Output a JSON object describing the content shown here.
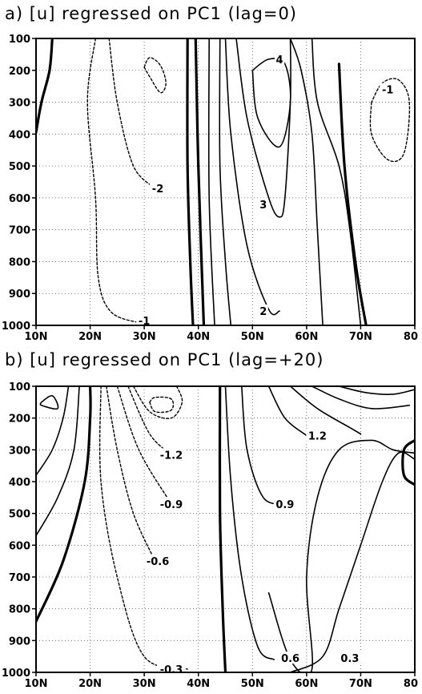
{
  "chart_data": [
    {
      "type": "contour",
      "title": "a) [u] regressed on PC1 (lag=0)",
      "x_ticks": [
        "10N",
        "20N",
        "30N",
        "40N",
        "50N",
        "60N",
        "70N",
        "80"
      ],
      "x_values": [
        10,
        20,
        30,
        40,
        50,
        60,
        70,
        80
      ],
      "y_ticks": [
        "100",
        "200",
        "300",
        "400",
        "500",
        "600",
        "700",
        "800",
        "900",
        "1000"
      ],
      "y_values": [
        100,
        200,
        300,
        400,
        500,
        600,
        700,
        800,
        900,
        1000
      ],
      "xlim": [
        10,
        80
      ],
      "ylim": [
        100,
        1000
      ],
      "y_inverted": true,
      "grid": true,
      "contour_labels": [
        {
          "text": "4",
          "lat": 55,
          "p": 165
        },
        {
          "text": "-1",
          "lat": 75,
          "p": 260
        },
        {
          "text": "-2",
          "lat": 32.5,
          "p": 570
        },
        {
          "text": "3",
          "lat": 52,
          "p": 620
        },
        {
          "text": "2",
          "lat": 52,
          "p": 955
        },
        {
          "text": "-1",
          "lat": 30,
          "p": 985
        }
      ],
      "contours": [
        {
          "style": "zero",
          "points": [
            [
              10,
              395
            ],
            [
              11,
              300
            ],
            [
              12.5,
              200
            ],
            [
              13,
              100
            ]
          ]
        },
        {
          "style": "dashed",
          "points": [
            [
              21,
              100
            ],
            [
              19.5,
              300
            ],
            [
              21,
              600
            ],
            [
              21.5,
              850
            ],
            [
              24,
              960
            ],
            [
              30,
              995
            ]
          ]
        },
        {
          "style": "dashed",
          "points": [
            [
              23.5,
              100
            ],
            [
              25,
              300
            ],
            [
              28,
              500
            ],
            [
              32,
              570
            ]
          ]
        },
        {
          "style": "dashed",
          "points": [
            [
              30,
              190
            ],
            [
              31,
              220
            ],
            [
              33,
              270
            ],
            [
              34,
              240
            ],
            [
              33,
              185
            ],
            [
              31,
              160
            ],
            [
              30,
              190
            ]
          ]
        },
        {
          "style": "zero",
          "points": [
            [
              38,
              100
            ],
            [
              38,
              500
            ],
            [
              38.5,
              800
            ],
            [
              39,
              1000
            ]
          ]
        },
        {
          "style": "zero",
          "points": [
            [
              39.5,
              100
            ],
            [
              40,
              500
            ],
            [
              41,
              1000
            ]
          ]
        },
        {
          "style": "solid",
          "points": [
            [
              42,
              100
            ],
            [
              42,
              600
            ],
            [
              43,
              1000
            ]
          ]
        },
        {
          "style": "solid",
          "points": [
            [
              44,
              100
            ],
            [
              44,
              500
            ],
            [
              45,
              800
            ],
            [
              46,
              1000
            ]
          ]
        },
        {
          "style": "solid",
          "points": [
            [
              45,
              100
            ],
            [
              46,
              400
            ],
            [
              49,
              750
            ],
            [
              53,
              950
            ],
            [
              55,
              955
            ]
          ]
        },
        {
          "style": "solid",
          "points": [
            [
              47,
              100
            ],
            [
              49,
              350
            ],
            [
              53,
              600
            ],
            [
              55,
              660
            ],
            [
              56,
              600
            ],
            [
              57,
              300
            ],
            [
              57,
              100
            ]
          ]
        },
        {
          "style": "solid",
          "points": [
            [
              50,
              200
            ],
            [
              51,
              350
            ],
            [
              55,
              440
            ],
            [
              57,
              300
            ],
            [
              56,
              180
            ],
            [
              53,
              165
            ],
            [
              50,
              200
            ]
          ]
        },
        {
          "style": "solid",
          "points": [
            [
              57,
              100
            ],
            [
              59,
              200
            ],
            [
              61,
              400
            ],
            [
              62,
              700
            ],
            [
              63,
              1000
            ]
          ]
        },
        {
          "style": "solid",
          "points": [
            [
              61,
              100
            ],
            [
              62,
              300
            ],
            [
              66,
              500
            ],
            [
              68,
              700
            ],
            [
              70,
              1000
            ]
          ]
        },
        {
          "style": "zero",
          "points": [
            [
              66,
              180
            ],
            [
              67,
              500
            ],
            [
              69,
              800
            ],
            [
              71,
              1000
            ]
          ]
        },
        {
          "style": "dashed",
          "points": [
            [
              72,
              300
            ],
            [
              72,
              400
            ],
            [
              75,
              480
            ],
            [
              78,
              460
            ],
            [
              79,
              300
            ],
            [
              77,
              230
            ],
            [
              74,
              240
            ],
            [
              72,
              300
            ]
          ]
        }
      ]
    },
    {
      "type": "contour",
      "title": "b) [u] regressed on PC1 (lag=+20)",
      "x_ticks": [
        "10N",
        "20N",
        "30N",
        "40N",
        "50N",
        "60N",
        "70N",
        "80"
      ],
      "x_values": [
        10,
        20,
        30,
        40,
        50,
        60,
        70,
        80
      ],
      "y_ticks": [
        "100",
        "200",
        "300",
        "400",
        "500",
        "600",
        "700",
        "800",
        "900",
        "1000"
      ],
      "y_values": [
        100,
        200,
        300,
        400,
        500,
        600,
        700,
        800,
        900,
        1000
      ],
      "xlim": [
        10,
        80
      ],
      "ylim": [
        100,
        1000
      ],
      "y_inverted": true,
      "grid": true,
      "contour_labels": [
        {
          "text": "-1.2",
          "lat": 35,
          "p": 315
        },
        {
          "text": "-0.9",
          "lat": 35,
          "p": 470
        },
        {
          "text": "-0.6",
          "lat": 32.5,
          "p": 650
        },
        {
          "text": "-0.3",
          "lat": 35,
          "p": 990
        },
        {
          "text": "1.2",
          "lat": 62,
          "p": 255
        },
        {
          "text": "0.9",
          "lat": 56,
          "p": 470
        },
        {
          "text": "0.6",
          "lat": 57,
          "p": 955
        },
        {
          "text": "0.3",
          "lat": 68,
          "p": 955
        }
      ],
      "contours": [
        {
          "style": "solid",
          "points": [
            [
              11,
              150
            ],
            [
              13,
              130
            ],
            [
              14,
              170
            ],
            [
              11,
              160
            ],
            [
              11,
              150
            ]
          ]
        },
        {
          "style": "solid",
          "points": [
            [
              10,
              380
            ],
            [
              13,
              300
            ],
            [
              15,
              200
            ],
            [
              16,
              100
            ]
          ]
        },
        {
          "style": "solid",
          "points": [
            [
              10,
              570
            ],
            [
              14,
              450
            ],
            [
              17,
              300
            ],
            [
              18,
              100
            ]
          ]
        },
        {
          "style": "zero",
          "points": [
            [
              10,
              840
            ],
            [
              15,
              650
            ],
            [
              19,
              400
            ],
            [
              20,
              200
            ],
            [
              20,
              100
            ]
          ]
        },
        {
          "style": "dashed",
          "points": [
            [
              22,
              100
            ],
            [
              22,
              400
            ],
            [
              25,
              700
            ],
            [
              30,
              950
            ],
            [
              38,
              990
            ]
          ]
        },
        {
          "style": "dashed",
          "points": [
            [
              23,
              100
            ],
            [
              25,
              300
            ],
            [
              28,
              500
            ],
            [
              32,
              650
            ]
          ]
        },
        {
          "style": "dashed",
          "points": [
            [
              25,
              100
            ],
            [
              29,
              300
            ],
            [
              35,
              470
            ]
          ]
        },
        {
          "style": "dashed",
          "points": [
            [
              27,
              100
            ],
            [
              31,
              250
            ],
            [
              35,
              315
            ]
          ]
        },
        {
          "style": "dashed",
          "points": [
            [
              28,
              100
            ],
            [
              31,
              180
            ],
            [
              35,
              200
            ],
            [
              37,
              150
            ],
            [
              36,
              100
            ]
          ]
        },
        {
          "style": "dashed",
          "points": [
            [
              31,
              150
            ],
            [
              32,
              180
            ],
            [
              35,
              175
            ],
            [
              35,
              140
            ],
            [
              32,
              135
            ],
            [
              31,
              150
            ]
          ]
        },
        {
          "style": "zero",
          "points": [
            [
              44,
              100
            ],
            [
              44,
              500
            ],
            [
              44.5,
              800
            ],
            [
              45,
              1000
            ]
          ]
        },
        {
          "style": "solid",
          "points": [
            [
              45,
              100
            ],
            [
              46,
              400
            ],
            [
              48,
              700
            ],
            [
              51,
              920
            ],
            [
              54,
              960
            ]
          ]
        },
        {
          "style": "solid",
          "points": [
            [
              48,
              100
            ],
            [
              49,
              300
            ],
            [
              52,
              450
            ],
            [
              56,
              470
            ]
          ]
        },
        {
          "style": "solid",
          "points": [
            [
              53,
              100
            ],
            [
              56,
              200
            ],
            [
              60,
              255
            ]
          ]
        },
        {
          "style": "solid",
          "points": [
            [
              57,
              100
            ],
            [
              62,
              170
            ],
            [
              68,
              230
            ],
            [
              70,
              250
            ]
          ]
        },
        {
          "style": "solid",
          "points": [
            [
              61,
              100
            ],
            [
              66,
              140
            ],
            [
              72,
              170
            ],
            [
              79,
              160
            ]
          ]
        },
        {
          "style": "solid",
          "points": [
            [
              66,
              100
            ],
            [
              71,
              120
            ],
            [
              76,
              125
            ],
            [
              80,
              110
            ]
          ]
        },
        {
          "style": "solid",
          "points": [
            [
              53,
              750
            ],
            [
              57,
              960
            ],
            [
              61,
              990
            ],
            [
              60,
              700
            ],
            [
              62,
              450
            ],
            [
              66,
              300
            ],
            [
              72,
              270
            ],
            [
              76,
              300
            ],
            [
              80,
              310
            ]
          ]
        },
        {
          "style": "solid",
          "points": [
            [
              57,
              1000
            ],
            [
              63,
              950
            ],
            [
              66,
              800
            ],
            [
              70,
              600
            ],
            [
              74,
              400
            ],
            [
              77,
              310
            ],
            [
              80,
              330
            ]
          ]
        },
        {
          "style": "zero",
          "points": [
            [
              80,
              270
            ],
            [
              78,
              300
            ],
            [
              78,
              380
            ],
            [
              80,
              410
            ]
          ]
        }
      ]
    }
  ]
}
